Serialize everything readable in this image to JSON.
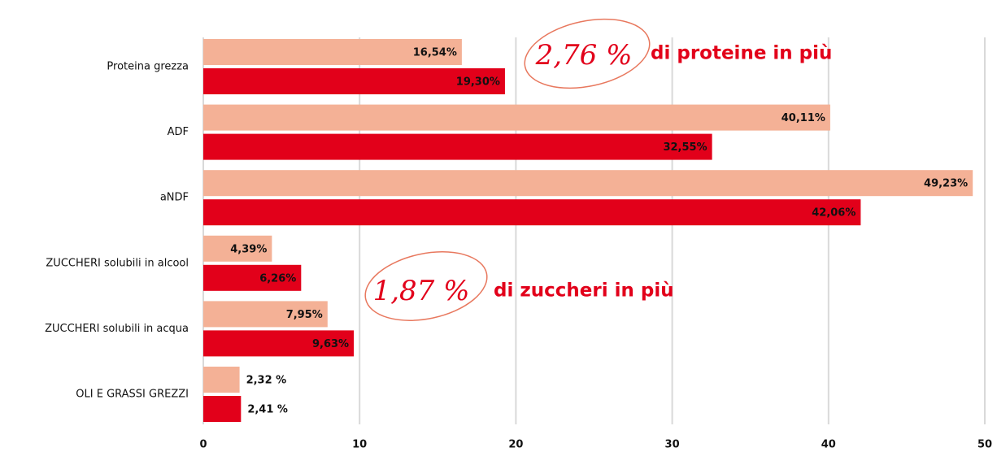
{
  "chart_data": {
    "type": "barh",
    "categories": [
      "Proteina grezza",
      "ADF",
      "aNDF",
      "ZUCCHERI solubili in alcool",
      "ZUCCHERI solubili in acqua",
      "OLI E GRASSI GREZZI"
    ],
    "series": [
      {
        "color": "#f4b196",
        "values": [
          16.54,
          40.11,
          49.23,
          4.39,
          7.95,
          2.32
        ],
        "value_labels": [
          "16,54%",
          "40,11%",
          "49,23%",
          "4,39%",
          "7,95%",
          "2,32 %"
        ]
      },
      {
        "color": "#e2001a",
        "values": [
          19.3,
          32.55,
          42.06,
          6.26,
          9.63,
          2.41
        ],
        "value_labels": [
          "19,30%",
          "32,55%",
          "42,06%",
          "6,26%",
          "9,63%",
          "2,41 %"
        ]
      }
    ],
    "xlim": [
      0,
      50
    ],
    "xticks": [
      0,
      10,
      20,
      30,
      40,
      50
    ],
    "grid": true,
    "annotations": [
      "2,76 %",
      "di proteine in più",
      "1,87 %",
      "di zuccheri in più"
    ]
  }
}
